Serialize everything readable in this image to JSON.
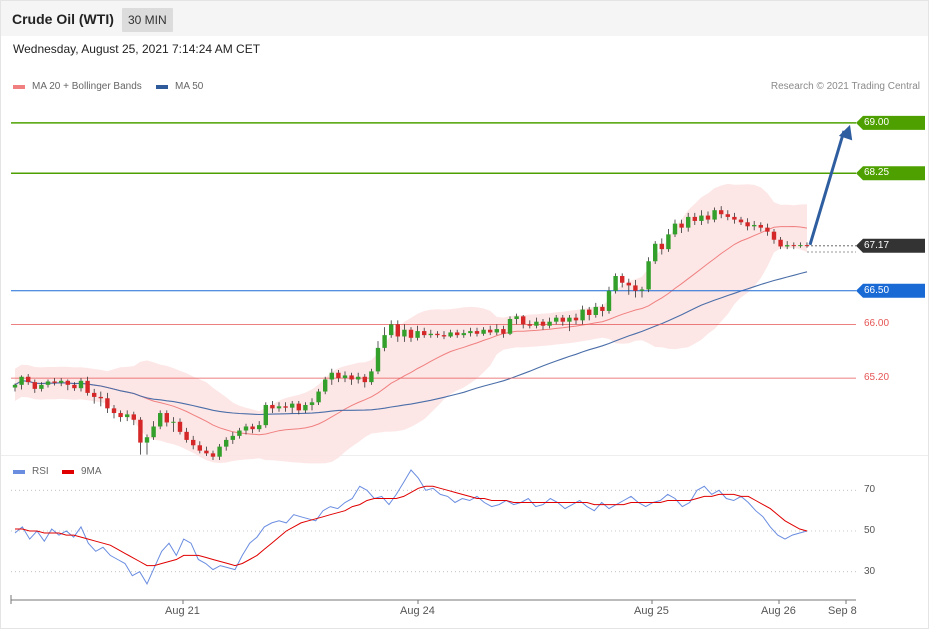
{
  "header": {
    "title": "Crude Oil (WTI)",
    "timeframe": "30 MIN",
    "datetime": "Wednesday, August 25, 2021 7:14:24 AM CET"
  },
  "legend": {
    "ma20": "MA 20 + Bollinger Bands",
    "ma50": "MA 50",
    "credit": "Research © 2021 Trading Central",
    "rsi": "RSI",
    "rsi_ma": "9MA"
  },
  "colors": {
    "bull": "#33a02c",
    "bear": "#d62728",
    "bollinger_fill": "#fde2e2",
    "ma20": "#f08080",
    "ma50": "#4a6ea8",
    "resistance": "#4ea000",
    "support": "#e65555",
    "pivot": "#1a6ad6",
    "last": "#333333",
    "rsi": "#6a8de0",
    "rsi_ma": "#e00000"
  },
  "chart_data": {
    "type": "candlestick",
    "price_ylim": [
      64.1,
      69.4
    ],
    "x_labels": [
      "Aug 21",
      "Aug 24",
      "Aug 25",
      "Aug 26",
      "Sep 8"
    ],
    "levels": [
      {
        "price": 69.0,
        "label": "69.00",
        "kind": "resistance"
      },
      {
        "price": 68.25,
        "label": "68.25",
        "kind": "resistance"
      },
      {
        "price": 67.17,
        "label": "67.17",
        "kind": "last"
      },
      {
        "price": 66.5,
        "label": "66.50",
        "kind": "pivot"
      },
      {
        "price": 66.0,
        "label": "66.00",
        "kind": "support"
      },
      {
        "price": 65.2,
        "label": "65.20",
        "kind": "support"
      }
    ],
    "target_arrow": {
      "from_price": 67.17,
      "to_price": 69.0
    },
    "candles": [
      [
        65.06,
        65.1,
        65.0,
        65.12
      ],
      [
        65.1,
        65.22,
        65.03,
        65.24
      ],
      [
        65.22,
        65.14,
        65.1,
        65.26
      ],
      [
        65.14,
        65.04,
        64.98,
        65.18
      ],
      [
        65.04,
        65.1,
        65.0,
        65.14
      ],
      [
        65.1,
        65.15,
        65.06,
        65.18
      ],
      [
        65.15,
        65.13,
        65.09,
        65.2
      ],
      [
        65.13,
        65.16,
        65.08,
        65.2
      ],
      [
        65.16,
        65.1,
        65.02,
        65.18
      ],
      [
        65.1,
        65.05,
        65.01,
        65.14
      ],
      [
        65.05,
        65.16,
        65.0,
        65.2
      ],
      [
        65.16,
        64.98,
        64.94,
        65.22
      ],
      [
        64.98,
        64.92,
        64.82,
        65.04
      ],
      [
        64.92,
        64.9,
        64.78,
        65.0
      ],
      [
        64.9,
        64.75,
        64.68,
        64.98
      ],
      [
        64.75,
        64.68,
        64.6,
        64.8
      ],
      [
        64.68,
        64.62,
        64.55,
        64.72
      ],
      [
        64.62,
        64.66,
        64.56,
        64.72
      ],
      [
        64.66,
        64.58,
        64.5,
        64.7
      ],
      [
        64.58,
        64.24,
        64.06,
        64.62
      ],
      [
        64.24,
        64.32,
        64.06,
        64.36
      ],
      [
        64.32,
        64.48,
        64.28,
        64.56
      ],
      [
        64.48,
        64.68,
        64.44,
        64.72
      ],
      [
        64.68,
        64.54,
        64.48,
        64.72
      ],
      [
        64.54,
        64.55,
        64.4,
        64.62
      ],
      [
        64.55,
        64.4,
        64.36,
        64.6
      ],
      [
        64.4,
        64.28,
        64.24,
        64.46
      ],
      [
        64.28,
        64.2,
        64.14,
        64.34
      ],
      [
        64.2,
        64.12,
        64.08,
        64.26
      ],
      [
        64.12,
        64.08,
        64.04,
        64.18
      ],
      [
        64.08,
        64.03,
        63.98,
        64.12
      ],
      [
        64.03,
        64.18,
        63.98,
        64.22
      ],
      [
        64.18,
        64.28,
        64.12,
        64.32
      ],
      [
        64.28,
        64.34,
        64.22,
        64.4
      ],
      [
        64.34,
        64.42,
        64.3,
        64.46
      ],
      [
        64.42,
        64.48,
        64.36,
        64.52
      ],
      [
        64.48,
        64.44,
        64.38,
        64.52
      ],
      [
        64.44,
        64.5,
        64.4,
        64.56
      ],
      [
        64.5,
        64.8,
        64.46,
        64.84
      ],
      [
        64.8,
        64.75,
        64.68,
        64.86
      ],
      [
        64.75,
        64.78,
        64.7,
        64.84
      ],
      [
        64.78,
        64.76,
        64.7,
        64.84
      ],
      [
        64.76,
        64.82,
        64.68,
        64.86
      ],
      [
        64.82,
        64.72,
        64.66,
        64.86
      ],
      [
        64.72,
        64.8,
        64.68,
        64.84
      ],
      [
        64.8,
        64.84,
        64.72,
        64.9
      ],
      [
        64.84,
        65.0,
        64.8,
        65.04
      ],
      [
        65.0,
        65.18,
        64.96,
        65.22
      ],
      [
        65.18,
        65.28,
        65.1,
        65.34
      ],
      [
        65.28,
        65.2,
        65.14,
        65.32
      ],
      [
        65.2,
        65.24,
        65.14,
        65.3
      ],
      [
        65.24,
        65.18,
        65.1,
        65.28
      ],
      [
        65.18,
        65.22,
        65.12,
        65.28
      ],
      [
        65.22,
        65.14,
        65.06,
        65.26
      ],
      [
        65.14,
        65.3,
        65.1,
        65.34
      ],
      [
        65.3,
        65.65,
        65.26,
        65.75
      ],
      [
        65.65,
        65.84,
        65.6,
        65.96
      ],
      [
        65.84,
        66.0,
        65.8,
        66.06
      ],
      [
        66.0,
        65.82,
        65.74,
        66.06
      ],
      [
        65.82,
        65.92,
        65.74,
        66.0
      ],
      [
        65.92,
        65.8,
        65.74,
        65.96
      ],
      [
        65.8,
        65.9,
        65.76,
        65.98
      ],
      [
        65.9,
        65.84,
        65.8,
        65.95
      ],
      [
        65.84,
        65.86,
        65.8,
        65.92
      ],
      [
        65.86,
        65.84,
        65.8,
        65.9
      ],
      [
        65.84,
        65.82,
        65.78,
        65.9
      ],
      [
        65.82,
        65.88,
        65.8,
        65.92
      ],
      [
        65.88,
        65.84,
        65.8,
        65.92
      ],
      [
        65.84,
        65.87,
        65.8,
        65.92
      ],
      [
        65.87,
        65.9,
        65.82,
        65.95
      ],
      [
        65.9,
        65.86,
        65.82,
        65.95
      ],
      [
        65.86,
        65.92,
        65.83,
        65.96
      ],
      [
        65.92,
        65.88,
        65.84,
        65.98
      ],
      [
        65.88,
        65.93,
        65.84,
        66.0
      ],
      [
        65.93,
        65.86,
        65.8,
        65.98
      ],
      [
        65.86,
        66.08,
        65.84,
        66.12
      ],
      [
        66.08,
        66.12,
        66.0,
        66.16
      ],
      [
        66.12,
        66.0,
        65.94,
        66.14
      ],
      [
        66.0,
        65.98,
        65.94,
        66.06
      ],
      [
        65.98,
        66.04,
        65.94,
        66.1
      ],
      [
        66.04,
        65.98,
        65.92,
        66.08
      ],
      [
        65.98,
        66.04,
        65.94,
        66.1
      ],
      [
        66.04,
        66.1,
        66.0,
        66.14
      ],
      [
        66.1,
        66.04,
        65.98,
        66.14
      ],
      [
        66.04,
        66.1,
        65.9,
        66.14
      ],
      [
        66.1,
        66.06,
        66.0,
        66.16
      ],
      [
        66.06,
        66.22,
        66.0,
        66.28
      ],
      [
        66.22,
        66.14,
        66.06,
        66.26
      ],
      [
        66.14,
        66.26,
        66.1,
        66.32
      ],
      [
        66.26,
        66.2,
        66.12,
        66.3
      ],
      [
        66.2,
        66.5,
        66.16,
        66.56
      ],
      [
        66.5,
        66.72,
        66.46,
        66.76
      ],
      [
        66.72,
        66.62,
        66.55,
        66.76
      ],
      [
        66.62,
        66.58,
        66.44,
        66.68
      ],
      [
        66.58,
        66.5,
        66.4,
        66.66
      ],
      [
        66.5,
        66.52,
        66.4,
        66.56
      ],
      [
        66.52,
        66.94,
        66.48,
        67.0
      ],
      [
        66.94,
        67.2,
        66.9,
        67.24
      ],
      [
        67.2,
        67.12,
        67.04,
        67.28
      ],
      [
        67.12,
        67.34,
        67.08,
        67.42
      ],
      [
        67.34,
        67.5,
        67.3,
        67.56
      ],
      [
        67.5,
        67.44,
        67.36,
        67.56
      ],
      [
        67.44,
        67.6,
        67.38,
        67.66
      ],
      [
        67.6,
        67.54,
        67.48,
        67.66
      ],
      [
        67.54,
        67.62,
        67.48,
        67.7
      ],
      [
        67.62,
        67.56,
        67.5,
        67.68
      ],
      [
        67.56,
        67.7,
        67.52,
        67.74
      ],
      [
        67.7,
        67.64,
        67.58,
        67.76
      ],
      [
        67.64,
        67.6,
        67.55,
        67.7
      ],
      [
        67.6,
        67.56,
        67.5,
        67.66
      ],
      [
        67.56,
        67.52,
        67.48,
        67.6
      ],
      [
        67.52,
        67.46,
        67.4,
        67.58
      ],
      [
        67.46,
        67.48,
        67.4,
        67.54
      ],
      [
        67.48,
        67.44,
        67.38,
        67.52
      ],
      [
        67.44,
        67.38,
        67.32,
        67.5
      ],
      [
        67.38,
        67.26,
        67.2,
        67.42
      ],
      [
        67.26,
        67.16,
        67.12,
        67.3
      ],
      [
        67.16,
        67.18,
        67.12,
        67.24
      ],
      [
        67.18,
        67.17,
        67.12,
        67.22
      ],
      [
        67.17,
        67.18,
        67.14,
        67.22
      ],
      [
        67.18,
        67.17,
        67.14,
        67.22
      ]
    ],
    "rsi": {
      "ylim": [
        20,
        80
      ],
      "ticks": [
        70,
        50,
        30
      ],
      "rsi_values": [
        49,
        52,
        46,
        50,
        45,
        51,
        48,
        50,
        47,
        52,
        44,
        40,
        42,
        38,
        36,
        34,
        28,
        30,
        24,
        32,
        40,
        44,
        38,
        46,
        44,
        36,
        34,
        31,
        33,
        32,
        31,
        38,
        44,
        47,
        52,
        54,
        55,
        54,
        58,
        57,
        56,
        55,
        60,
        62,
        61,
        64,
        66,
        72,
        70,
        66,
        67,
        63,
        68,
        74,
        80,
        76,
        70,
        71,
        68,
        67,
        64,
        66,
        65,
        67,
        64,
        62,
        63,
        65,
        63,
        64,
        66,
        62,
        63,
        66,
        64,
        61,
        63,
        65,
        62,
        60,
        64,
        61,
        63,
        65,
        67,
        64,
        62,
        64,
        65,
        68,
        66,
        62,
        64,
        70,
        72,
        68,
        70,
        66,
        65,
        67,
        64,
        60,
        57,
        52,
        48,
        46,
        48,
        49,
        50
      ],
      "ma_values": [
        51,
        51,
        50,
        50,
        49,
        49,
        49,
        48,
        48,
        47,
        46,
        45,
        44,
        43,
        41,
        39,
        37,
        35,
        33,
        33,
        34,
        35,
        36,
        38,
        38,
        38,
        37,
        36,
        35,
        34,
        33,
        34,
        36,
        38,
        41,
        44,
        47,
        50,
        52,
        54,
        55,
        56,
        57,
        58,
        59,
        60,
        62,
        63,
        65,
        66,
        66,
        66,
        66,
        67,
        69,
        71,
        72,
        72,
        71,
        70,
        69,
        68,
        67,
        66,
        66,
        65,
        65,
        65,
        64,
        64,
        64,
        64,
        64,
        64,
        64,
        64,
        64,
        64,
        64,
        63,
        63,
        63,
        63,
        63,
        64,
        64,
        64,
        64,
        64,
        65,
        65,
        65,
        65,
        66,
        67,
        67,
        68,
        68,
        68,
        67,
        67,
        65,
        63,
        61,
        58,
        55,
        53,
        51,
        50
      ],
      "line_50_label": "50",
      "label_70": "70",
      "label_30": "30"
    }
  }
}
